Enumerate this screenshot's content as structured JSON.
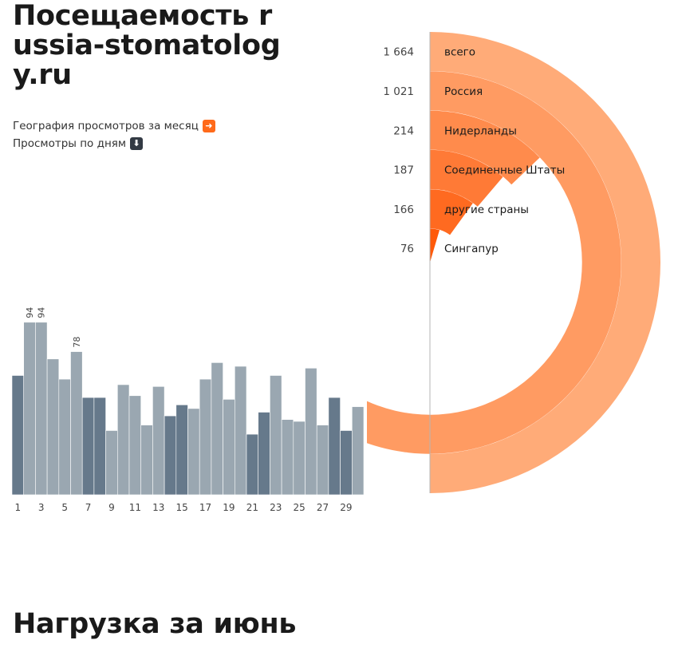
{
  "page": {
    "title": "Посещаемость russia-stomatology.ru",
    "links": [
      {
        "label": "География просмотров за месяц",
        "icon": "arrow-right-icon"
      },
      {
        "label": "Просмотры по дням",
        "icon": "arrow-down-icon"
      }
    ],
    "section_title": "Нагрузка за июнь"
  },
  "colors": {
    "bar_weekday": "#9aa7b1",
    "bar_weekend": "#66798b",
    "ring_light": "#ffab78",
    "ring_dark": "#ff5a0a"
  },
  "chart_data": [
    {
      "type": "bar",
      "days": [
        1,
        2,
        3,
        4,
        5,
        6,
        7,
        8,
        9,
        10,
        11,
        12,
        13,
        14,
        15,
        16,
        17,
        18,
        19,
        20,
        21,
        22,
        23,
        24,
        25,
        26,
        27,
        28,
        29,
        30
      ],
      "values": [
        65,
        94,
        94,
        74,
        63,
        78,
        53,
        53,
        35,
        60,
        54,
        38,
        59,
        43,
        49,
        47,
        63,
        72,
        52,
        70,
        33,
        45,
        65,
        41,
        40,
        69,
        38,
        53,
        35,
        48
      ],
      "weekend_days": [
        1,
        7,
        8,
        14,
        15,
        21,
        22,
        28,
        29
      ],
      "labeled_days": [
        2,
        3,
        6
      ],
      "x_tick_labels": [
        "1",
        "3",
        "5",
        "7",
        "9",
        "11",
        "13",
        "15",
        "17",
        "19",
        "21",
        "23",
        "25",
        "27",
        "29"
      ],
      "ylim": [
        0,
        100
      ]
    },
    {
      "type": "radial-bar",
      "total": 1664,
      "items": [
        {
          "label": "всего",
          "value": 1664,
          "display": "1 664"
        },
        {
          "label": "Россия",
          "value": 1021,
          "display": "1 021"
        },
        {
          "label": "Нидерланды",
          "value": 214,
          "display": "214"
        },
        {
          "label": "Соединенные Штаты",
          "value": 187,
          "display": "187"
        },
        {
          "label": "другие страны",
          "value": 166,
          "display": "166"
        },
        {
          "label": "Сингапур",
          "value": 76,
          "display": "76"
        }
      ]
    }
  ]
}
